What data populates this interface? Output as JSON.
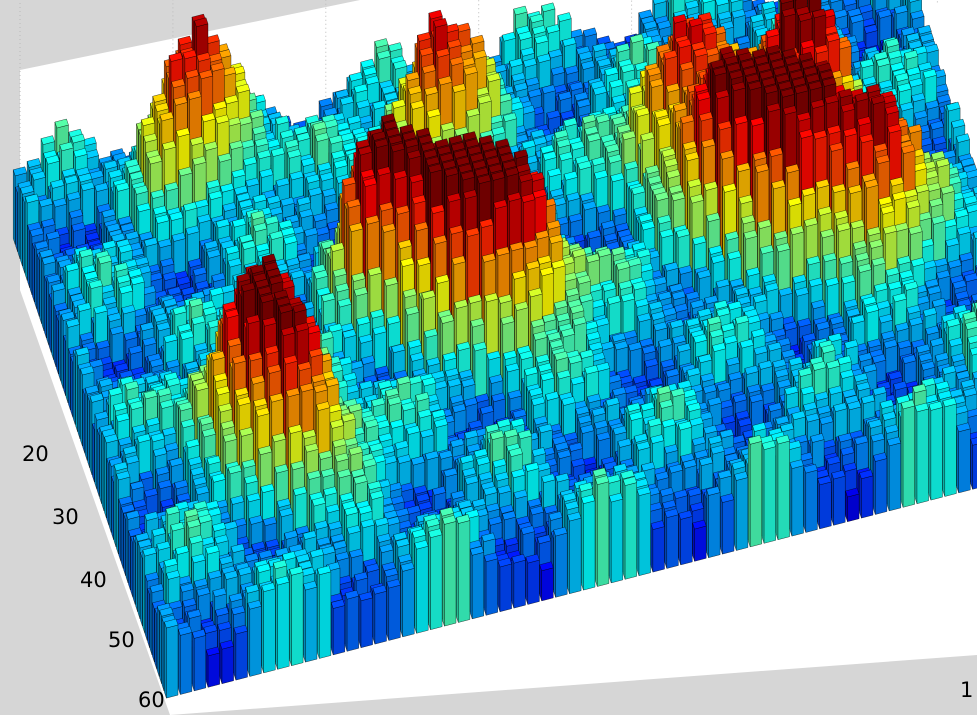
{
  "chart_data": {
    "type": "bar3",
    "description_colormap": "jet",
    "colors": {
      "figure_background": "#d6d6d6",
      "axes_background": "#ffffff",
      "low": "#00007f",
      "mid": "#7fff7f",
      "high": "#7f0000"
    },
    "grid": true,
    "axes": {
      "y": {
        "ticks": [
          20,
          30,
          40,
          50,
          60
        ],
        "tick_labels": [
          "20",
          "30",
          "40",
          "50",
          "60"
        ],
        "range": [
          1,
          64
        ]
      },
      "x": {
        "visible_tick_labels": [
          "1"
        ],
        "range": [
          1,
          64
        ]
      }
    },
    "surface": {
      "rows": 64,
      "cols": 64,
      "zlim": [
        0,
        1
      ],
      "peak_regions": [
        {
          "row": 28,
          "col": 22,
          "height": 0.95
        },
        {
          "row": 33,
          "col": 26,
          "height": 0.92
        },
        {
          "row": 36,
          "col": 30,
          "height": 0.9
        },
        {
          "row": 40,
          "col": 10,
          "height": 0.9
        },
        {
          "row": 47,
          "col": 12,
          "height": 0.85
        },
        {
          "row": 30,
          "col": 46,
          "height": 0.93
        },
        {
          "row": 34,
          "col": 50,
          "height": 0.95
        },
        {
          "row": 38,
          "col": 55,
          "height": 0.9
        },
        {
          "row": 24,
          "col": 52,
          "height": 0.92
        },
        {
          "row": 20,
          "col": 44,
          "height": 0.88
        },
        {
          "row": 12,
          "col": 28,
          "height": 0.82
        },
        {
          "row": 6,
          "col": 12,
          "height": 0.85
        }
      ]
    }
  },
  "axis_labels": {
    "y_ticks": [
      "20",
      "30",
      "40",
      "50",
      "60"
    ],
    "x_tick_first": "1"
  }
}
